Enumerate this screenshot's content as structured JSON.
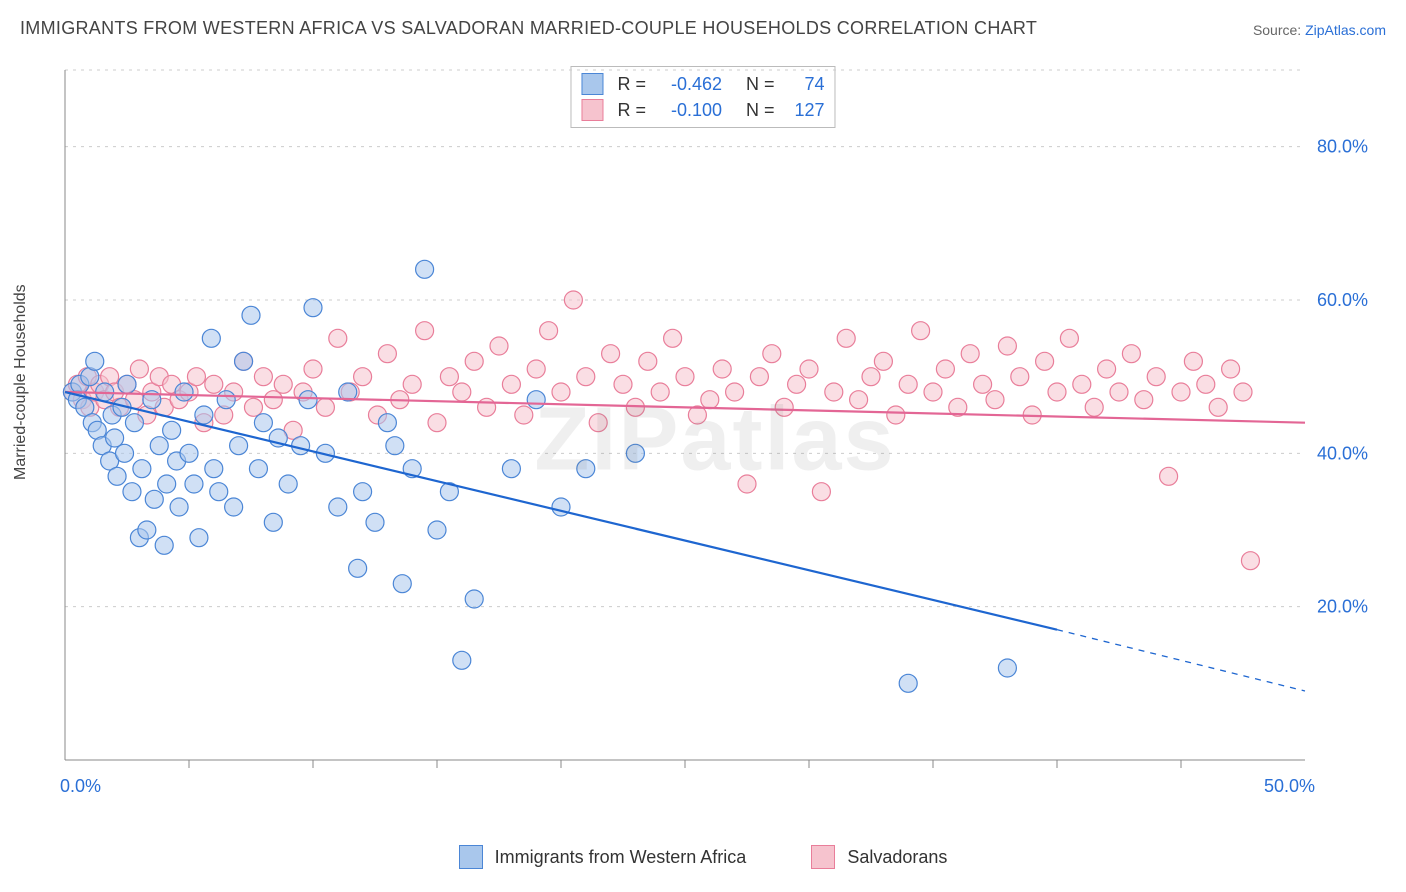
{
  "title": "IMMIGRANTS FROM WESTERN AFRICA VS SALVADORAN MARRIED-COUPLE HOUSEHOLDS CORRELATION CHART",
  "source_prefix": "Source: ",
  "source_name": "ZipAtlas.com",
  "y_axis_label": "Married-couple Households",
  "watermark": "ZIPatlas",
  "colors": {
    "series_a_fill": "#a9c7ec",
    "series_a_stroke": "#4b86d6",
    "series_b_fill": "#f6c3ce",
    "series_b_stroke": "#e97e9a",
    "line_a": "#1e66d0",
    "line_b": "#e36695",
    "grid": "#cccccc",
    "axis": "#888888",
    "tick_text": "#2a6fd6",
    "bg": "#ffffff"
  },
  "chart": {
    "type": "scatter",
    "xlim": [
      0,
      50
    ],
    "ylim": [
      0,
      90
    ],
    "x_ticks_major": [
      0,
      50
    ],
    "x_ticks_minor": [
      5,
      10,
      15,
      20,
      25,
      30,
      35,
      40,
      45
    ],
    "y_ticks": [
      20,
      40,
      60,
      80
    ],
    "point_radius": 9,
    "point_opacity": 0.55,
    "line_width": 2.2
  },
  "legend_top": {
    "rows": [
      {
        "swatch": "a",
        "r_label": "R =",
        "r_value": "-0.462",
        "n_label": "N =",
        "n_value": "74"
      },
      {
        "swatch": "b",
        "r_label": "R =",
        "r_value": "-0.100",
        "n_label": "N =",
        "n_value": "127"
      }
    ]
  },
  "legend_bottom": {
    "items": [
      {
        "swatch": "a",
        "label": "Immigrants from Western Africa"
      },
      {
        "swatch": "b",
        "label": "Salvadorans"
      }
    ]
  },
  "series": {
    "a": {
      "trend": {
        "x1": 0,
        "y1": 48,
        "x2": 40,
        "y2": 17,
        "dash_x2": 50,
        "dash_y2": 9
      },
      "points": [
        [
          0.3,
          48
        ],
        [
          0.5,
          47
        ],
        [
          0.6,
          49
        ],
        [
          0.8,
          46
        ],
        [
          1.0,
          50
        ],
        [
          1.1,
          44
        ],
        [
          1.2,
          52
        ],
        [
          1.3,
          43
        ],
        [
          1.5,
          41
        ],
        [
          1.6,
          48
        ],
        [
          1.8,
          39
        ],
        [
          1.9,
          45
        ],
        [
          2.0,
          42
        ],
        [
          2.1,
          37
        ],
        [
          2.3,
          46
        ],
        [
          2.4,
          40
        ],
        [
          2.5,
          49
        ],
        [
          2.7,
          35
        ],
        [
          2.8,
          44
        ],
        [
          3.0,
          29
        ],
        [
          3.1,
          38
        ],
        [
          3.3,
          30
        ],
        [
          3.5,
          47
        ],
        [
          3.6,
          34
        ],
        [
          3.8,
          41
        ],
        [
          4.0,
          28
        ],
        [
          4.1,
          36
        ],
        [
          4.3,
          43
        ],
        [
          4.5,
          39
        ],
        [
          4.6,
          33
        ],
        [
          4.8,
          48
        ],
        [
          5.0,
          40
        ],
        [
          5.2,
          36
        ],
        [
          5.4,
          29
        ],
        [
          5.6,
          45
        ],
        [
          5.9,
          55
        ],
        [
          6.0,
          38
        ],
        [
          6.2,
          35
        ],
        [
          6.5,
          47
        ],
        [
          6.8,
          33
        ],
        [
          7.0,
          41
        ],
        [
          7.2,
          52
        ],
        [
          7.5,
          58
        ],
        [
          7.8,
          38
        ],
        [
          8.0,
          44
        ],
        [
          8.4,
          31
        ],
        [
          8.6,
          42
        ],
        [
          9.0,
          36
        ],
        [
          9.5,
          41
        ],
        [
          9.8,
          47
        ],
        [
          10.0,
          59
        ],
        [
          10.5,
          40
        ],
        [
          11.0,
          33
        ],
        [
          11.4,
          48
        ],
        [
          11.8,
          25
        ],
        [
          12.0,
          35
        ],
        [
          12.5,
          31
        ],
        [
          13.0,
          44
        ],
        [
          13.3,
          41
        ],
        [
          13.6,
          23
        ],
        [
          14.0,
          38
        ],
        [
          14.5,
          64
        ],
        [
          15.0,
          30
        ],
        [
          15.5,
          35
        ],
        [
          16.0,
          13
        ],
        [
          16.5,
          21
        ],
        [
          18.0,
          38
        ],
        [
          19.0,
          47
        ],
        [
          20.0,
          33
        ],
        [
          21.0,
          38
        ],
        [
          23.0,
          40
        ],
        [
          34.0,
          10
        ],
        [
          38.0,
          12
        ]
      ]
    },
    "b": {
      "trend": {
        "x1": 0,
        "y1": 48,
        "x2": 50,
        "y2": 44
      },
      "points": [
        [
          0.3,
          48
        ],
        [
          0.5,
          49
        ],
        [
          0.7,
          47
        ],
        [
          0.9,
          50
        ],
        [
          1.0,
          46
        ],
        [
          1.2,
          48
        ],
        [
          1.4,
          49
        ],
        [
          1.6,
          47
        ],
        [
          1.8,
          50
        ],
        [
          2.0,
          48
        ],
        [
          2.2,
          46
        ],
        [
          2.5,
          49
        ],
        [
          2.8,
          47
        ],
        [
          3.0,
          51
        ],
        [
          3.3,
          45
        ],
        [
          3.5,
          48
        ],
        [
          3.8,
          50
        ],
        [
          4.0,
          46
        ],
        [
          4.3,
          49
        ],
        [
          4.6,
          47
        ],
        [
          5.0,
          48
        ],
        [
          5.3,
          50
        ],
        [
          5.6,
          44
        ],
        [
          6.0,
          49
        ],
        [
          6.4,
          45
        ],
        [
          6.8,
          48
        ],
        [
          7.2,
          52
        ],
        [
          7.6,
          46
        ],
        [
          8.0,
          50
        ],
        [
          8.4,
          47
        ],
        [
          8.8,
          49
        ],
        [
          9.2,
          43
        ],
        [
          9.6,
          48
        ],
        [
          10.0,
          51
        ],
        [
          10.5,
          46
        ],
        [
          11.0,
          55
        ],
        [
          11.5,
          48
        ],
        [
          12.0,
          50
        ],
        [
          12.6,
          45
        ],
        [
          13.0,
          53
        ],
        [
          13.5,
          47
        ],
        [
          14.0,
          49
        ],
        [
          14.5,
          56
        ],
        [
          15.0,
          44
        ],
        [
          15.5,
          50
        ],
        [
          16.0,
          48
        ],
        [
          16.5,
          52
        ],
        [
          17.0,
          46
        ],
        [
          17.5,
          54
        ],
        [
          18.0,
          49
        ],
        [
          18.5,
          45
        ],
        [
          19.0,
          51
        ],
        [
          19.5,
          56
        ],
        [
          20.0,
          48
        ],
        [
          20.5,
          60
        ],
        [
          21.0,
          50
        ],
        [
          21.5,
          44
        ],
        [
          22.0,
          53
        ],
        [
          22.5,
          49
        ],
        [
          23.0,
          46
        ],
        [
          23.5,
          52
        ],
        [
          24.0,
          48
        ],
        [
          24.5,
          55
        ],
        [
          25.0,
          50
        ],
        [
          25.5,
          45
        ],
        [
          26.0,
          47
        ],
        [
          26.5,
          51
        ],
        [
          27.0,
          48
        ],
        [
          27.5,
          36
        ],
        [
          28.0,
          50
        ],
        [
          28.5,
          53
        ],
        [
          29.0,
          46
        ],
        [
          29.5,
          49
        ],
        [
          30.0,
          51
        ],
        [
          30.5,
          35
        ],
        [
          31.0,
          48
        ],
        [
          31.5,
          55
        ],
        [
          32.0,
          47
        ],
        [
          32.5,
          50
        ],
        [
          33.0,
          52
        ],
        [
          33.5,
          45
        ],
        [
          34.0,
          49
        ],
        [
          34.5,
          56
        ],
        [
          35.0,
          48
        ],
        [
          35.5,
          51
        ],
        [
          36.0,
          46
        ],
        [
          36.5,
          53
        ],
        [
          37.0,
          49
        ],
        [
          37.5,
          47
        ],
        [
          38.0,
          54
        ],
        [
          38.5,
          50
        ],
        [
          39.0,
          45
        ],
        [
          39.5,
          52
        ],
        [
          40.0,
          48
        ],
        [
          40.5,
          55
        ],
        [
          41.0,
          49
        ],
        [
          41.5,
          46
        ],
        [
          42.0,
          51
        ],
        [
          42.5,
          48
        ],
        [
          43.0,
          53
        ],
        [
          43.5,
          47
        ],
        [
          44.0,
          50
        ],
        [
          44.5,
          37
        ],
        [
          45.0,
          48
        ],
        [
          45.5,
          52
        ],
        [
          46.0,
          49
        ],
        [
          46.5,
          46
        ],
        [
          47.0,
          51
        ],
        [
          47.5,
          48
        ],
        [
          47.8,
          26
        ]
      ]
    }
  }
}
